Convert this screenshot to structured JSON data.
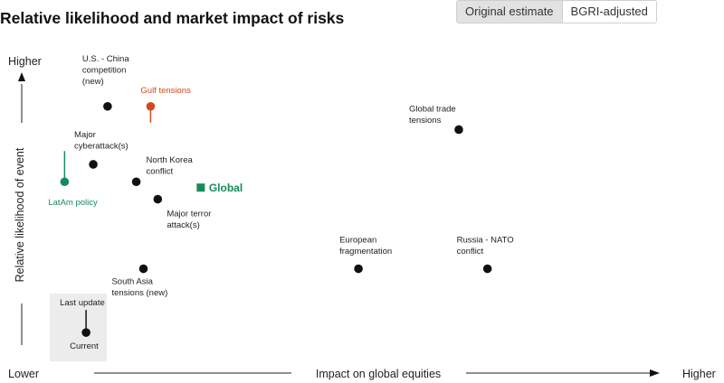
{
  "header": {
    "title": "Relative likelihood and market impact of risks"
  },
  "toggle": {
    "options": [
      "Original estimate",
      "BGRI-adjusted"
    ],
    "selected": "Original estimate"
  },
  "colors": {
    "black": "#111111",
    "orange": "#d04a1d",
    "green": "#178a5c",
    "panel": "#ececec"
  },
  "chart_data": {
    "type": "scatter",
    "title": "Relative likelihood and market impact of risks",
    "xlabel": "Impact on global equities",
    "ylabel": "Relative likelihood of event",
    "x_low_label": "Lower",
    "x_high_label": "Higher",
    "y_high_label": "Higher",
    "xlim": [
      0,
      100
    ],
    "ylim": [
      0,
      100
    ],
    "grid": false,
    "points": [
      {
        "label": "U.S. - China competition (new)",
        "x": 14,
        "y": 82,
        "color": "black"
      },
      {
        "label": "Gulf tensions",
        "x": 20,
        "y": 82,
        "color": "orange"
      },
      {
        "label": "Global trade tensions",
        "x": 63,
        "y": 74,
        "color": "black"
      },
      {
        "label": "Major cyberattack(s)",
        "x": 12,
        "y": 62,
        "color": "black"
      },
      {
        "label": "North Korea conflict",
        "x": 18,
        "y": 56,
        "color": "black"
      },
      {
        "label": "LatAm policy",
        "x": 8,
        "y": 56,
        "color": "green"
      },
      {
        "label": "Major terror attack(s)",
        "x": 21,
        "y": 50,
        "color": "black"
      },
      {
        "label": "European fragmentation",
        "x": 49,
        "y": 26,
        "color": "black"
      },
      {
        "label": "Russia - NATO conflict",
        "x": 67,
        "y": 26,
        "color": "black"
      },
      {
        "label": "South Asia tensions (new)",
        "x": 19,
        "y": 26,
        "color": "black"
      },
      {
        "label": "Current",
        "x": 11,
        "y": 4,
        "color": "black"
      }
    ],
    "global_marker": {
      "label": "Global",
      "x": 27,
      "y": 54,
      "color": "green"
    },
    "annotations": [
      {
        "text": "Last update",
        "color": "black"
      },
      {
        "text": "Current",
        "color": "black"
      }
    ]
  }
}
